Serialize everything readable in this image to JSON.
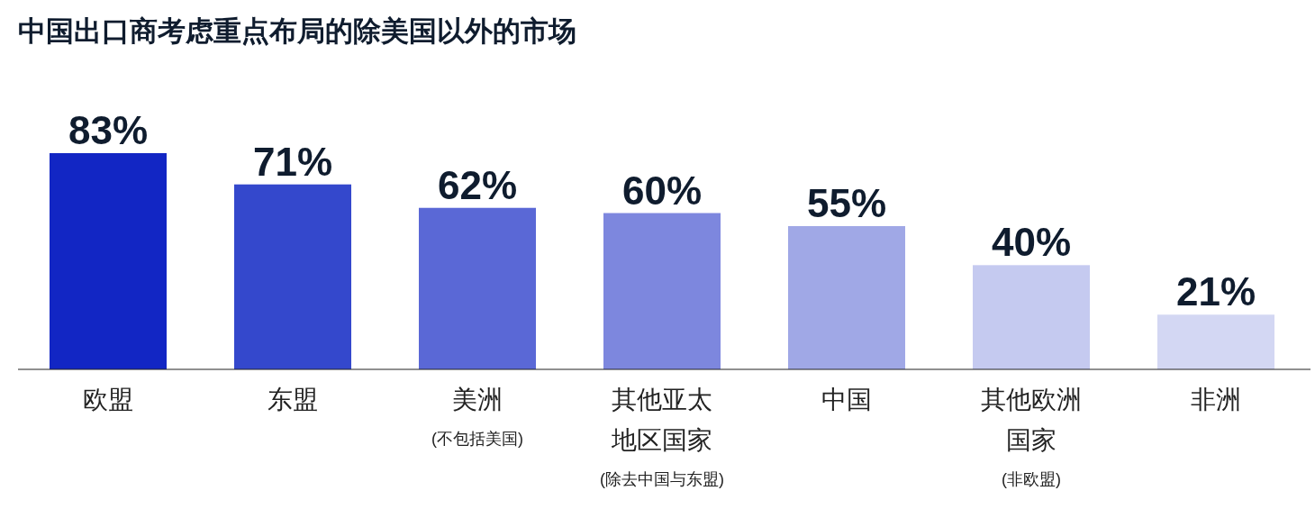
{
  "chart_data": {
    "type": "bar",
    "title": "中国出口商考虑重点布局的除美国以外的市场",
    "categories": [
      "欧盟",
      "东盟",
      "美洲(不包括美国)",
      "其他亚太地区国家(除去中国与东盟)",
      "中国",
      "其他欧洲国家(非欧盟)",
      "非洲"
    ],
    "values": [
      83,
      71,
      62,
      60,
      55,
      40,
      21
    ],
    "colors": [
      "#1226c4",
      "#3448cc",
      "#5a68d6",
      "#7d87de",
      "#a0a8e6",
      "#c5caf0",
      "#d3d7f3"
    ],
    "value_labels": [
      "83%",
      "71%",
      "62%",
      "60%",
      "55%",
      "40%",
      "21%"
    ],
    "ylim": [
      0,
      83
    ],
    "tick_labels": "x"
  }
}
